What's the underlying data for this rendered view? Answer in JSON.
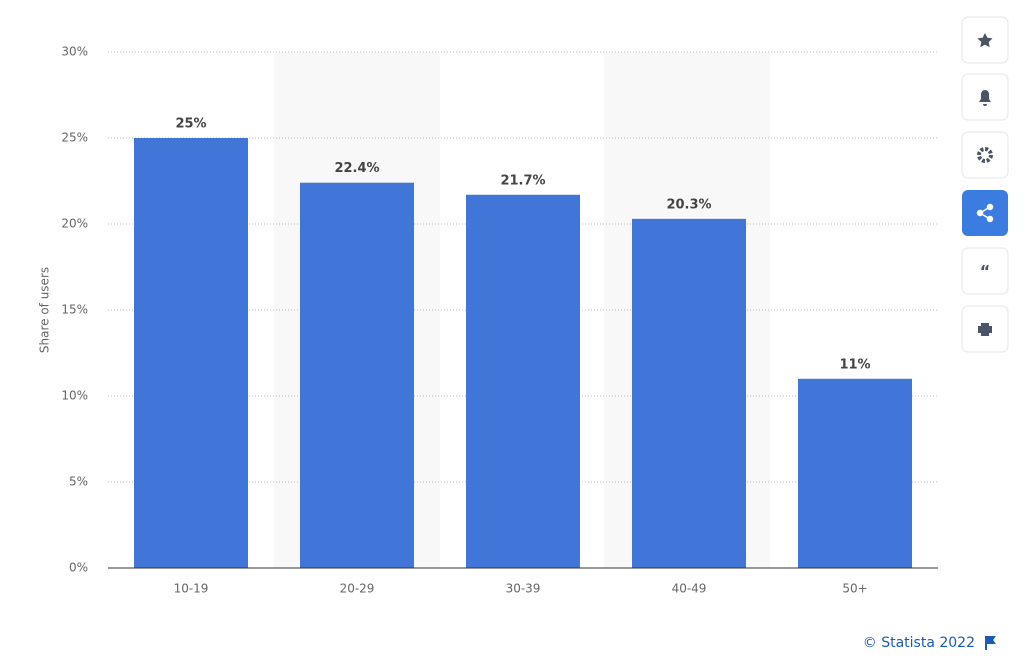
{
  "chart_data": {
    "type": "bar",
    "y_label": "Share of users",
    "categories": [
      "10-19",
      "20-29",
      "30-39",
      "40-49",
      "50+"
    ],
    "values": [
      25,
      22.4,
      21.7,
      20.3,
      11
    ],
    "value_labels": [
      "25%",
      "22.4%",
      "21.7%",
      "20.3%",
      "11%"
    ],
    "color": "#4175d8",
    "ylim": [
      0,
      30
    ],
    "yticks": [
      {
        "value": 0,
        "label": "0%"
      },
      {
        "value": 5,
        "label": "5%"
      },
      {
        "value": 10,
        "label": "10%"
      },
      {
        "value": 15,
        "label": "15%"
      },
      {
        "value": 20,
        "label": "20%"
      },
      {
        "value": 25,
        "label": "25%"
      },
      {
        "value": 30,
        "label": "30%"
      }
    ],
    "grid": true,
    "source": "© Statista 2022"
  }
}
